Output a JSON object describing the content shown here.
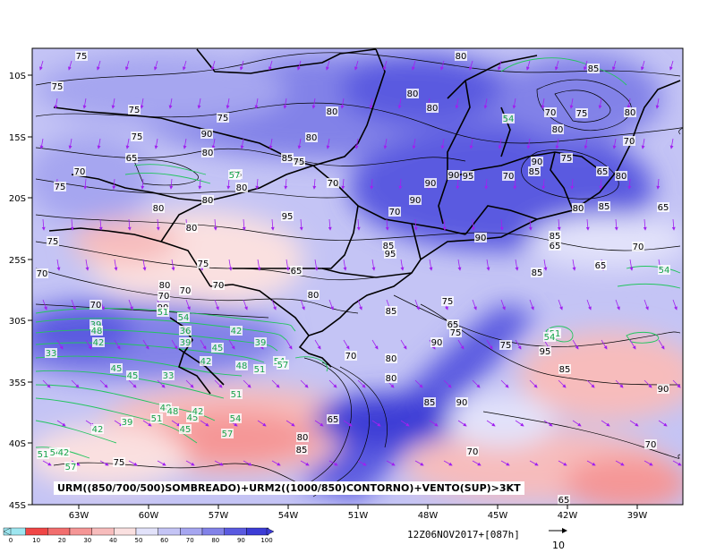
{
  "map": {
    "lat_ticks": [
      "10S",
      "15S",
      "20S",
      "25S",
      "30S",
      "35S",
      "40S",
      "45S"
    ],
    "lon_ticks": [
      "63W",
      "60W",
      "57W",
      "54W",
      "51W",
      "48W",
      "45W",
      "42W",
      "39W"
    ],
    "caption": "URM((850/700/500)SOMBREADO)+URM2((1000/850)CONTORNO)+VENTO(SUP)>3KT",
    "timestamp": "12Z06NOV2017+[087h]",
    "colorbar": {
      "ticks": [
        "0",
        "10",
        "20",
        "30",
        "40",
        "50",
        "60",
        "70",
        "80",
        "90",
        "100"
      ],
      "colors": [
        "#9ee6f0",
        "#f04646",
        "#f26e6e",
        "#f59696",
        "#f7bcbc",
        "#fae0e0",
        "#e2e2fa",
        "#c4c4f5",
        "#a6a6f0",
        "#8282e8",
        "#5a5ae0",
        "#3c3cd6"
      ]
    },
    "wind_reference": "10",
    "black_contour_labels": [
      "75",
      "75",
      "75",
      "75",
      "80",
      "80",
      "80",
      "80",
      "85",
      "70",
      "75",
      "80",
      "75",
      "90",
      "80",
      "80",
      "70",
      "65",
      "70",
      "75",
      "80",
      "85",
      "75",
      "70",
      "80",
      "75",
      "80",
      "90",
      "90",
      "95",
      "70",
      "90",
      "85",
      "75",
      "65",
      "80",
      "80",
      "80",
      "95",
      "70",
      "90",
      "80",
      "85",
      "65",
      "75",
      "85",
      "95",
      "90",
      "85",
      "65",
      "70",
      "70",
      "75",
      "70",
      "65",
      "80",
      "85",
      "80",
      "70",
      "70",
      "90",
      "65",
      "70",
      "75",
      "65",
      "85",
      "70",
      "80",
      "75",
      "90",
      "75",
      "80",
      "85",
      "90",
      "95",
      "85",
      "90",
      "80",
      "85",
      "65",
      "70",
      "70",
      "75",
      "65"
    ],
    "green_contour_labels": [
      "54",
      "57",
      "51",
      "54",
      "39",
      "42",
      "45",
      "48",
      "39",
      "42",
      "45",
      "36",
      "39",
      "42",
      "48",
      "51",
      "54",
      "57",
      "33",
      "45",
      "48",
      "45",
      "42",
      "39",
      "51",
      "48",
      "45",
      "42",
      "54",
      "57",
      "51",
      "54",
      "42",
      "57",
      "51",
      "33",
      "51",
      "54",
      "54"
    ]
  }
}
